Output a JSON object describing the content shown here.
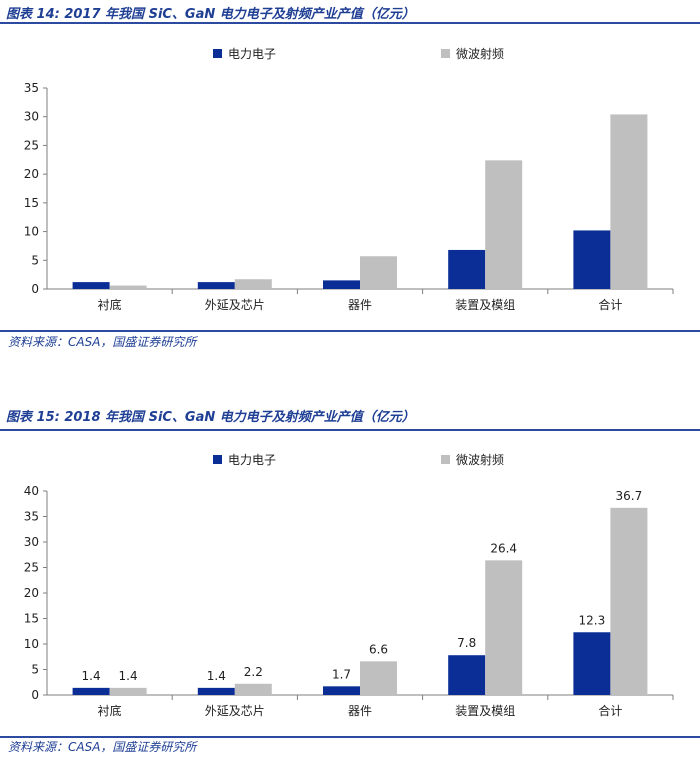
{
  "figure1": {
    "title": "图表 14:  2017 年我国 SiC、GaN 电力电子及射频产业产值（亿元）",
    "source": "资料来源：CASA，国盛证券研究所"
  },
  "figure2": {
    "title": "图表 15:  2018 年我国 SiC、GaN 电力电子及射频产业产值（亿元）",
    "source": "资料来源：CASA，国盛证券研究所"
  },
  "colors": {
    "power": "#0a2d96",
    "rf": "#bfbfbf",
    "rule": "#2b4aa0"
  },
  "chart_data": [
    {
      "type": "bar",
      "title": "",
      "categories": [
        "衬底",
        "外延及芯片",
        "器件",
        "装置及模组",
        "合计"
      ],
      "series": [
        {
          "name": "电力电子",
          "values": [
            1.2,
            1.2,
            1.5,
            6.8,
            10.2
          ]
        },
        {
          "name": "微波射频",
          "values": [
            0.6,
            1.7,
            5.7,
            22.4,
            30.4
          ]
        }
      ],
      "ylim": [
        0,
        35
      ],
      "yticks": [
        0,
        5,
        10,
        15,
        20,
        25,
        30,
        35
      ],
      "data_labels": false,
      "legend": "top-center",
      "grid": false
    },
    {
      "type": "bar",
      "title": "",
      "categories": [
        "衬底",
        "外延及芯片",
        "器件",
        "装置及模组",
        "合计"
      ],
      "series": [
        {
          "name": "电力电子",
          "values": [
            1.4,
            1.4,
            1.7,
            7.8,
            12.3
          ]
        },
        {
          "name": "微波射频",
          "values": [
            1.4,
            2.2,
            6.6,
            26.4,
            36.7
          ]
        }
      ],
      "ylim": [
        0,
        40
      ],
      "yticks": [
        0,
        5,
        10,
        15,
        20,
        25,
        30,
        35,
        40
      ],
      "data_labels": true,
      "legend": "top-center",
      "grid": false
    }
  ]
}
